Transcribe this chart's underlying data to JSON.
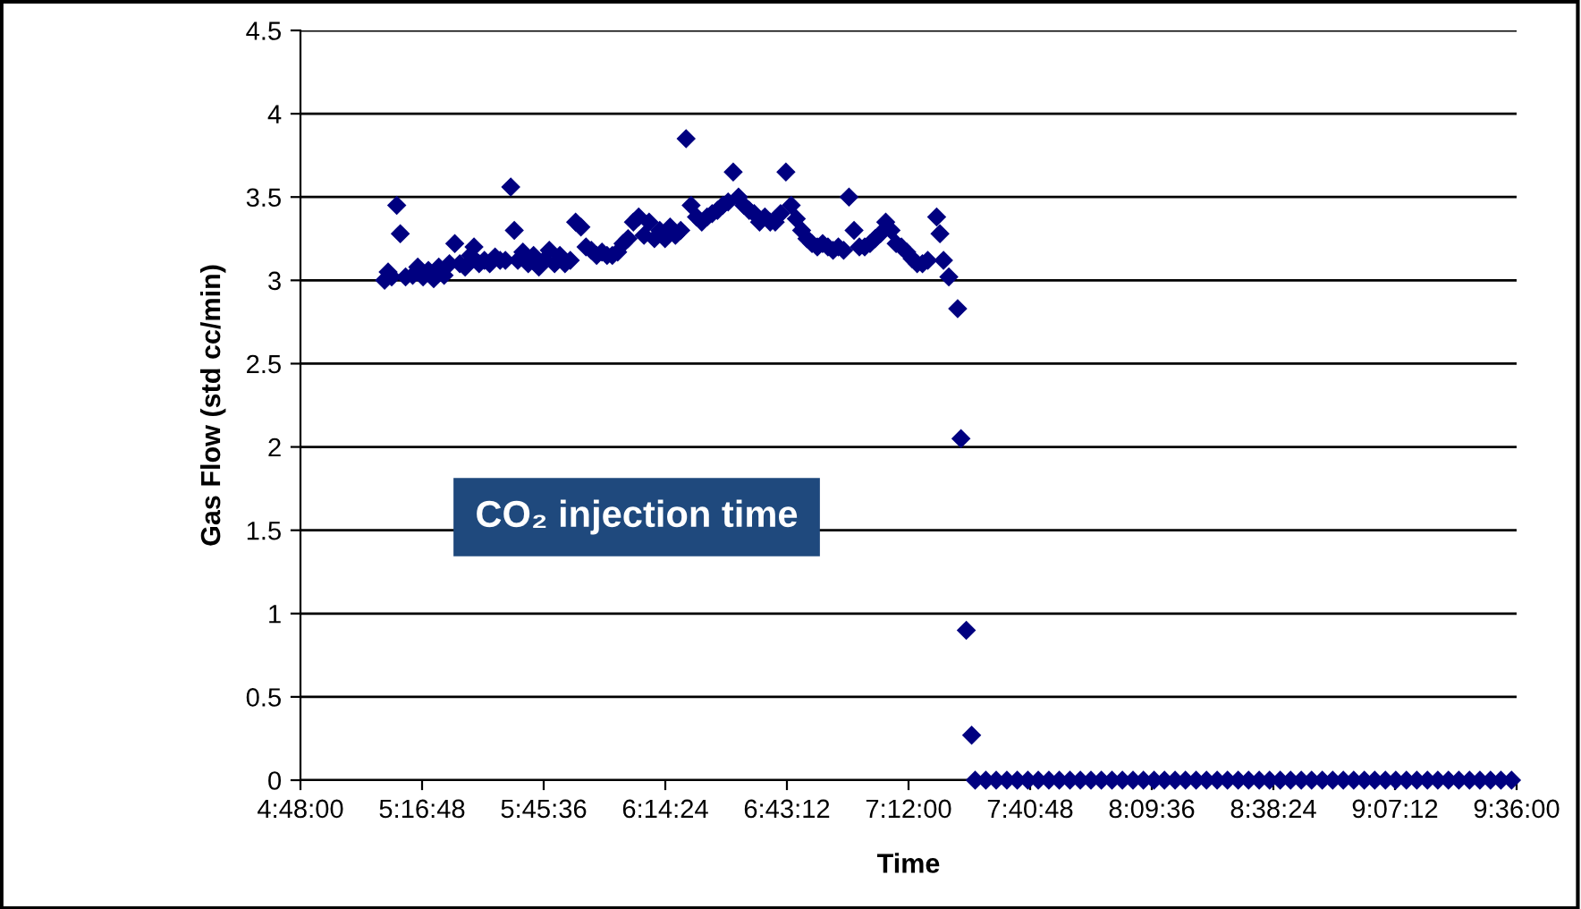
{
  "chart_data": {
    "type": "scatter",
    "xlabel": "Time",
    "ylabel": "Gas Flow (std cc/min)",
    "marker": "diamond",
    "grid": "y",
    "annotations": [
      "CO₂ injection time"
    ],
    "xlim": [
      4.8,
      9.6
    ],
    "ylim": [
      0,
      4.5
    ],
    "xticks": [
      {
        "value": 4.8,
        "label": "4:48:00"
      },
      {
        "value": 5.28,
        "label": "5:16:48"
      },
      {
        "value": 5.76,
        "label": "5:45:36"
      },
      {
        "value": 6.24,
        "label": "6:14:24"
      },
      {
        "value": 6.72,
        "label": "6:43:12"
      },
      {
        "value": 7.2,
        "label": "7:12:00"
      },
      {
        "value": 7.68,
        "label": "7:40:48"
      },
      {
        "value": 8.16,
        "label": "8:09:36"
      },
      {
        "value": 8.64,
        "label": "8:38:24"
      },
      {
        "value": 9.12,
        "label": "9:07:12"
      },
      {
        "value": 9.6,
        "label": "9:36:00"
      }
    ],
    "yticks": [
      0,
      0.5,
      1,
      1.5,
      2,
      2.5,
      3,
      3.5,
      4,
      4.5
    ],
    "series": [
      {
        "color": "#000080",
        "x": [
          5.132,
          5.146,
          5.16,
          5.18,
          5.194,
          5.215,
          5.243,
          5.263,
          5.284,
          5.305,
          5.326,
          5.346,
          5.367,
          5.388,
          5.409,
          5.429,
          5.45,
          5.471,
          5.485,
          5.505,
          5.526,
          5.547,
          5.568,
          5.588,
          5.609,
          5.63,
          5.644,
          5.658,
          5.678,
          5.699,
          5.72,
          5.741,
          5.761,
          5.782,
          5.803,
          5.824,
          5.844,
          5.865,
          5.886,
          5.907,
          5.927,
          5.948,
          5.969,
          5.99,
          6.01,
          6.031,
          6.052,
          6.073,
          6.093,
          6.114,
          6.135,
          6.156,
          6.176,
          6.197,
          6.218,
          6.239,
          6.259,
          6.28,
          6.301,
          6.322,
          6.342,
          6.363,
          6.384,
          6.405,
          6.425,
          6.446,
          6.467,
          6.488,
          6.508,
          6.529,
          6.55,
          6.571,
          6.591,
          6.612,
          6.633,
          6.654,
          6.674,
          6.695,
          6.716,
          6.737,
          6.757,
          6.778,
          6.799,
          6.819,
          6.84,
          6.861,
          6.882,
          6.902,
          6.923,
          6.944,
          6.965,
          6.985,
          7.006,
          7.027,
          7.048,
          7.068,
          7.089,
          7.11,
          7.131,
          7.151,
          7.172,
          7.193,
          7.214,
          7.234,
          7.255,
          7.276,
          7.311,
          7.324,
          7.338,
          7.359,
          7.394,
          7.407,
          7.428,
          7.449,
          7.463,
          7.505,
          7.546,
          7.588,
          7.629,
          7.671,
          7.712,
          7.754,
          7.795,
          7.837,
          7.878,
          7.92,
          7.961,
          8.003,
          8.044,
          8.086,
          8.127,
          8.169,
          8.21,
          8.252,
          8.293,
          8.335,
          8.376,
          8.418,
          8.459,
          8.501,
          8.542,
          8.584,
          8.625,
          8.667,
          8.708,
          8.75,
          8.791,
          8.833,
          8.874,
          8.916,
          8.957,
          8.999,
          9.04,
          9.082,
          9.123,
          9.165,
          9.206,
          9.248,
          9.289,
          9.331,
          9.372,
          9.414,
          9.455,
          9.497,
          9.538,
          9.58
        ],
        "values": [
          3.0,
          3.05,
          3.02,
          3.45,
          3.28,
          3.02,
          3.03,
          3.08,
          3.02,
          3.06,
          3.01,
          3.08,
          3.03,
          3.1,
          3.22,
          3.1,
          3.08,
          3.15,
          3.2,
          3.1,
          3.12,
          3.1,
          3.14,
          3.12,
          3.12,
          3.56,
          3.3,
          3.12,
          3.17,
          3.1,
          3.15,
          3.08,
          3.12,
          3.18,
          3.1,
          3.15,
          3.1,
          3.12,
          3.35,
          3.32,
          3.2,
          3.18,
          3.15,
          3.17,
          3.15,
          3.15,
          3.17,
          3.22,
          3.25,
          3.35,
          3.38,
          3.27,
          3.35,
          3.25,
          3.3,
          3.25,
          3.32,
          3.27,
          3.3,
          3.85,
          3.45,
          3.38,
          3.35,
          3.38,
          3.4,
          3.42,
          3.45,
          3.47,
          3.65,
          3.5,
          3.45,
          3.42,
          3.4,
          3.35,
          3.38,
          3.35,
          3.35,
          3.4,
          3.65,
          3.45,
          3.37,
          3.3,
          3.25,
          3.22,
          3.2,
          3.22,
          3.2,
          3.18,
          3.2,
          3.18,
          3.5,
          3.3,
          3.2,
          3.2,
          3.22,
          3.25,
          3.28,
          3.35,
          3.3,
          3.22,
          3.2,
          3.17,
          3.13,
          3.1,
          3.1,
          3.12,
          3.38,
          3.28,
          3.12,
          3.02,
          2.83,
          2.05,
          0.9,
          0.27,
          0,
          0,
          0,
          0,
          0,
          0,
          0,
          0,
          0,
          0,
          0,
          0,
          0,
          0,
          0,
          0,
          0,
          0,
          0,
          0,
          0,
          0,
          0,
          0,
          0,
          0,
          0,
          0,
          0,
          0,
          0,
          0,
          0,
          0,
          0,
          0,
          0,
          0,
          0,
          0,
          0,
          0,
          0,
          0,
          0,
          0,
          0,
          0,
          0,
          0,
          0,
          0
        ]
      }
    ]
  }
}
